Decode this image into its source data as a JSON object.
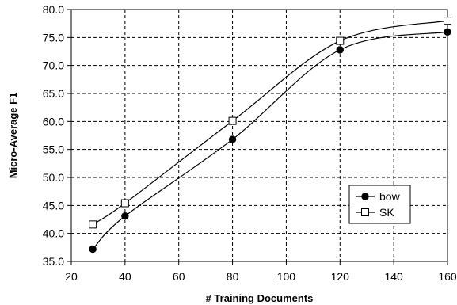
{
  "chart_data": {
    "type": "line",
    "title": "",
    "xlabel": "# Training Documents",
    "ylabel": "Micro-Average F1",
    "xlim": [
      20,
      160
    ],
    "ylim": [
      35.0,
      80.0
    ],
    "xticks": [
      "20",
      "40",
      "60",
      "80",
      "100",
      "120",
      "140",
      "160"
    ],
    "yticks": [
      "35.0",
      "40.0",
      "45.0",
      "50.0",
      "55.0",
      "60.0",
      "65.0",
      "70.0",
      "75.0",
      "80.0"
    ],
    "grid": true,
    "legend_position": "right",
    "series": [
      {
        "name": "bow",
        "marker": "filled-circle",
        "color": "#000000",
        "x": [
          28,
          40,
          80,
          120,
          160
        ],
        "y": [
          37.2,
          43.1,
          56.8,
          72.8,
          76.0
        ]
      },
      {
        "name": "SK",
        "marker": "open-square",
        "color": "#000000",
        "x": [
          28,
          40,
          80,
          120,
          160
        ],
        "y": [
          41.6,
          45.4,
          60.1,
          74.4,
          78.0
        ]
      }
    ]
  }
}
